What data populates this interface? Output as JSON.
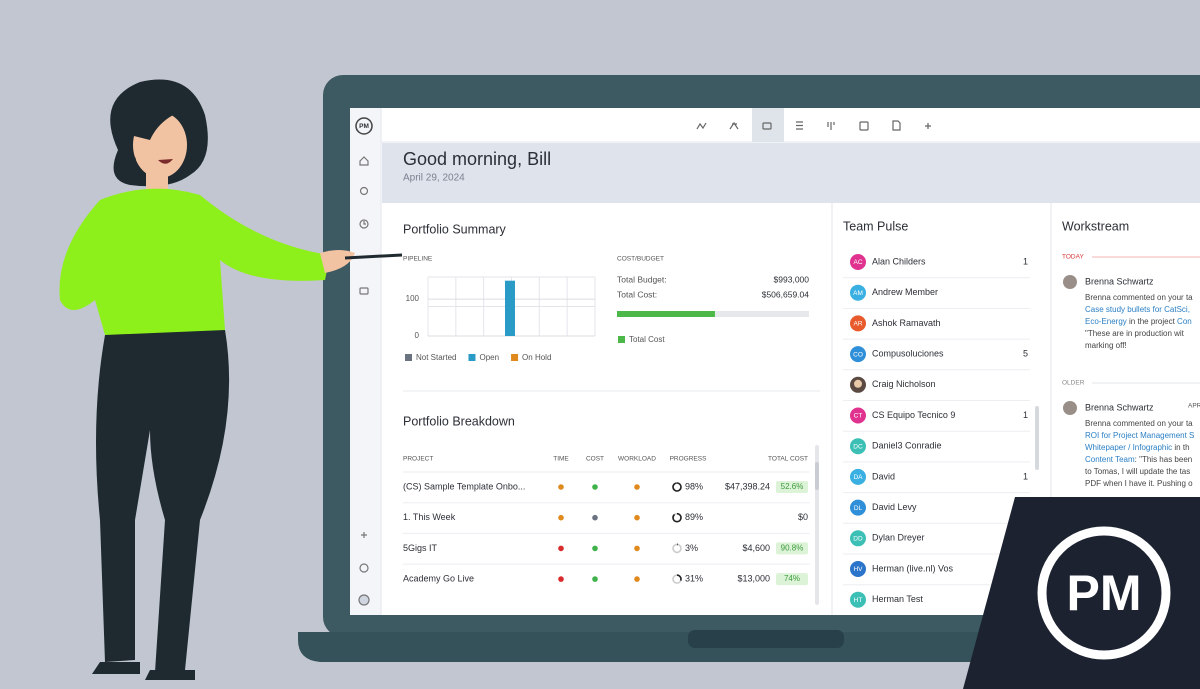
{
  "logo": "PM",
  "header": {
    "greeting": "Good morning, Bill",
    "date": "April 29, 2024"
  },
  "portfolio_summary": {
    "title": "Portfolio Summary",
    "pipeline": {
      "label": "PIPELINE",
      "ylim": [
        0,
        160
      ],
      "yticks": [
        0,
        100
      ],
      "values": [
        150
      ],
      "color": "#2a9ac6",
      "legend": [
        {
          "name": "Not Started",
          "color": "#6b7280"
        },
        {
          "name": "Open",
          "color": "#2a9ac6"
        },
        {
          "name": "On Hold",
          "color": "#e08a1e"
        }
      ]
    },
    "cost_budget": {
      "label": "COST/BUDGET",
      "total_budget_label": "Total Budget:",
      "total_budget": {
        "value": 993000,
        "label": "$993,000"
      },
      "total_cost_label": "Total Cost:",
      "total_cost": {
        "value": 506659.04,
        "label": "$506,659.04"
      },
      "legend": {
        "name": "Total Cost",
        "color": "#4cb848"
      }
    }
  },
  "portfolio_breakdown": {
    "title": "Portfolio Breakdown",
    "columns": [
      "PROJECT",
      "TIME",
      "COST",
      "WORKLOAD",
      "PROGRESS",
      "TOTAL COST"
    ],
    "rows": [
      {
        "project": "(CS) Sample Template Onbo...",
        "time": "#e08a1e",
        "cost": "#3fb24a",
        "workload": "#e08a1e",
        "progress": "98%",
        "total_cost": "$47,398.24",
        "budget_used": "52.6%"
      },
      {
        "project": "1. This Week",
        "time": "#e08a1e",
        "cost": "#6b7280",
        "workload": "#e08a1e",
        "progress": "89%",
        "total_cost": "$0"
      },
      {
        "project": "5Gigs IT",
        "time": "#d92b2b",
        "cost": "#3fb24a",
        "workload": "#e08a1e",
        "progress": "3%",
        "total_cost": "$4,600",
        "budget_used": "90.8%"
      },
      {
        "project": "Academy Go Live",
        "time": "#d92b2b",
        "cost": "#3fb24a",
        "workload": "#e08a1e",
        "progress": "31%",
        "total_cost": "$13,000",
        "budget_used": "74%"
      }
    ]
  },
  "team_pulse": {
    "title": "Team Pulse",
    "members": [
      {
        "initials": "AC",
        "name": "Alan Childers",
        "color": "#e0338f",
        "count": "1"
      },
      {
        "initials": "AM",
        "name": "Andrew Member",
        "color": "#3ab0e2"
      },
      {
        "initials": "AR",
        "name": "Ashok Ramavath",
        "color": "#e85a2b"
      },
      {
        "initials": "CO",
        "name": "Compusoluciones",
        "color": "#2f8fd8",
        "count": "5"
      },
      {
        "name": "Craig Nicholson",
        "color": "#5a4a42"
      },
      {
        "initials": "CT",
        "name": "CS Equipo Tecnico 9",
        "color": "#e0338f",
        "count": "1"
      },
      {
        "initials": "DC",
        "name": "Daniel3 Conradie",
        "color": "#3cc0b5"
      },
      {
        "initials": "DA",
        "name": "David",
        "color": "#3ab0e2",
        "count": "1"
      },
      {
        "initials": "DL",
        "name": "David Levy",
        "color": "#2f8fd8"
      },
      {
        "initials": "DD",
        "name": "Dylan Dreyer",
        "color": "#3cc0b5"
      },
      {
        "initials": "HV",
        "name": "Herman (live.nl) Vos",
        "color": "#2a74c9"
      },
      {
        "initials": "HT",
        "name": "Herman Test",
        "color": "#3cc0b5"
      }
    ]
  },
  "workstream": {
    "title": "Workstream",
    "sections": [
      {
        "label": "TODAY",
        "entries": [
          {
            "author": "Brenna Schwartz",
            "lines": [
              [
                {
                  "text": "Brenna commented on your ta"
                }
              ],
              [
                {
                  "text": "Case study bullets for CatSci,",
                  "link": true
                }
              ],
              [
                {
                  "text": "Eco-Energy",
                  "link": true
                },
                {
                  "text": " in the project "
                },
                {
                  "text": "Con",
                  "link": true
                }
              ],
              [
                {
                  "text": "\"These are in production wit"
                }
              ],
              [
                {
                  "text": "marking off!"
                }
              ]
            ]
          }
        ]
      },
      {
        "label": "OLDER",
        "entries": [
          {
            "author": "Brenna Schwartz",
            "date": "APR",
            "lines": [
              [
                {
                  "text": "Brenna commented on your ta"
                }
              ],
              [
                {
                  "text": "ROI for Project Management S",
                  "link": true
                }
              ],
              [
                {
                  "text": "Whitepaper / Infographic",
                  "link": true
                },
                {
                  "text": " in th"
                }
              ],
              [
                {
                  "text": "Content Team",
                  "link": true
                },
                {
                  "text": ": \"This has been"
                }
              ],
              [
                {
                  "text": "to Tomas, I will update the tas"
                }
              ],
              [
                {
                  "text": "PDF when I have it. Pushing o"
                }
              ]
            ]
          }
        ]
      }
    ]
  }
}
